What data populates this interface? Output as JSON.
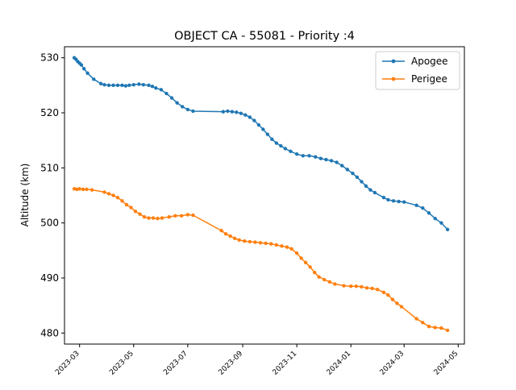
{
  "chart_data": {
    "type": "line",
    "title": "OBJECT CA - 55081 - Priority :4",
    "xlabel": "",
    "ylabel": "Altitude (km)",
    "xlim": [
      "2023-02-12",
      "2024-05-08"
    ],
    "ylim": [
      478,
      532
    ],
    "x_ticks": [
      "2023-03",
      "2023-05",
      "2023-07",
      "2023-09",
      "2023-11",
      "2024-01",
      "2024-03",
      "2024-05"
    ],
    "x_tick_dates": [
      "2023-03-01",
      "2023-05-01",
      "2023-07-01",
      "2023-09-01",
      "2023-11-01",
      "2024-01-01",
      "2024-03-01",
      "2024-05-01"
    ],
    "y_ticks": [
      480,
      490,
      500,
      510,
      520,
      530
    ],
    "grid": false,
    "legend": "top-right",
    "series": [
      {
        "name": "Apogee",
        "color": "#1f77b4",
        "points": [
          [
            "2023-02-23",
            530.0
          ],
          [
            "2023-02-25",
            529.7
          ],
          [
            "2023-02-27",
            529.3
          ],
          [
            "2023-03-01",
            529.0
          ],
          [
            "2023-03-03",
            528.7
          ],
          [
            "2023-03-06",
            528.0
          ],
          [
            "2023-03-10",
            527.2
          ],
          [
            "2023-03-17",
            526.1
          ],
          [
            "2023-03-25",
            525.3
          ],
          [
            "2023-03-29",
            525.1
          ],
          [
            "2023-04-03",
            525.0
          ],
          [
            "2023-04-08",
            525.0
          ],
          [
            "2023-04-13",
            525.0
          ],
          [
            "2023-04-18",
            525.0
          ],
          [
            "2023-04-22",
            524.9
          ],
          [
            "2023-04-26",
            525.0
          ],
          [
            "2023-05-01",
            525.1
          ],
          [
            "2023-05-07",
            525.2
          ],
          [
            "2023-05-12",
            525.1
          ],
          [
            "2023-05-18",
            525.0
          ],
          [
            "2023-05-22",
            524.8
          ],
          [
            "2023-05-26",
            524.5
          ],
          [
            "2023-06-01",
            524.2
          ],
          [
            "2023-06-07",
            523.5
          ],
          [
            "2023-06-13",
            522.7
          ],
          [
            "2023-06-19",
            521.8
          ],
          [
            "2023-06-25",
            521.1
          ],
          [
            "2023-07-01",
            520.6
          ],
          [
            "2023-07-07",
            520.3
          ],
          [
            "2023-08-10",
            520.2
          ],
          [
            "2023-08-15",
            520.3
          ],
          [
            "2023-08-20",
            520.2
          ],
          [
            "2023-08-25",
            520.1
          ],
          [
            "2023-08-30",
            519.9
          ],
          [
            "2023-09-04",
            519.6
          ],
          [
            "2023-09-09",
            519.2
          ],
          [
            "2023-09-14",
            518.6
          ],
          [
            "2023-09-19",
            517.8
          ],
          [
            "2023-09-24",
            517.0
          ],
          [
            "2023-09-29",
            516.1
          ],
          [
            "2023-10-04",
            515.2
          ],
          [
            "2023-10-09",
            514.5
          ],
          [
            "2023-10-14",
            514.0
          ],
          [
            "2023-10-19",
            513.5
          ],
          [
            "2023-10-25",
            513.0
          ],
          [
            "2023-11-01",
            512.5
          ],
          [
            "2023-11-08",
            512.2
          ],
          [
            "2023-11-15",
            512.2
          ],
          [
            "2023-11-22",
            512.0
          ],
          [
            "2023-11-28",
            511.7
          ],
          [
            "2023-12-04",
            511.5
          ],
          [
            "2023-12-10",
            511.3
          ],
          [
            "2023-12-16",
            511.0
          ],
          [
            "2023-12-22",
            510.4
          ],
          [
            "2023-12-28",
            509.7
          ],
          [
            "2024-01-03",
            509.0
          ],
          [
            "2024-01-08",
            508.3
          ],
          [
            "2024-01-13",
            507.5
          ],
          [
            "2024-01-18",
            506.7
          ],
          [
            "2024-01-23",
            506.0
          ],
          [
            "2024-01-28",
            505.5
          ],
          [
            "2024-02-07",
            504.6
          ],
          [
            "2024-02-12",
            504.2
          ],
          [
            "2024-02-18",
            504.0
          ],
          [
            "2024-02-24",
            503.9
          ],
          [
            "2024-03-01",
            503.8
          ],
          [
            "2024-03-15",
            503.2
          ],
          [
            "2024-03-22",
            502.7
          ],
          [
            "2024-03-29",
            501.8
          ],
          [
            "2024-04-05",
            500.8
          ],
          [
            "2024-04-12",
            500.0
          ],
          [
            "2024-04-19",
            498.8
          ]
        ]
      },
      {
        "name": "Perigee",
        "color": "#ff7f0e",
        "points": [
          [
            "2023-02-23",
            506.2
          ],
          [
            "2023-02-26",
            506.1
          ],
          [
            "2023-03-01",
            506.2
          ],
          [
            "2023-03-05",
            506.1
          ],
          [
            "2023-03-09",
            506.1
          ],
          [
            "2023-03-15",
            506.0
          ],
          [
            "2023-03-29",
            505.6
          ],
          [
            "2023-04-03",
            505.3
          ],
          [
            "2023-04-08",
            505.0
          ],
          [
            "2023-04-13",
            504.6
          ],
          [
            "2023-04-18",
            504.0
          ],
          [
            "2023-04-23",
            503.3
          ],
          [
            "2023-04-28",
            502.8
          ],
          [
            "2023-05-03",
            502.1
          ],
          [
            "2023-05-08",
            501.6
          ],
          [
            "2023-05-13",
            501.1
          ],
          [
            "2023-05-18",
            500.9
          ],
          [
            "2023-05-23",
            500.9
          ],
          [
            "2023-05-28",
            500.8
          ],
          [
            "2023-06-02",
            500.9
          ],
          [
            "2023-06-10",
            501.1
          ],
          [
            "2023-06-17",
            501.3
          ],
          [
            "2023-06-24",
            501.3
          ],
          [
            "2023-07-01",
            501.5
          ],
          [
            "2023-07-07",
            501.4
          ],
          [
            "2023-08-08",
            498.6
          ],
          [
            "2023-08-13",
            498.0
          ],
          [
            "2023-08-18",
            497.6
          ],
          [
            "2023-08-23",
            497.2
          ],
          [
            "2023-08-28",
            496.9
          ],
          [
            "2023-09-03",
            496.7
          ],
          [
            "2023-09-09",
            496.6
          ],
          [
            "2023-09-15",
            496.5
          ],
          [
            "2023-09-21",
            496.4
          ],
          [
            "2023-09-27",
            496.3
          ],
          [
            "2023-10-03",
            496.2
          ],
          [
            "2023-10-09",
            496.0
          ],
          [
            "2023-10-15",
            495.8
          ],
          [
            "2023-10-21",
            495.6
          ],
          [
            "2023-10-26",
            495.3
          ],
          [
            "2023-11-01",
            494.5
          ],
          [
            "2023-11-06",
            493.6
          ],
          [
            "2023-11-11",
            492.8
          ],
          [
            "2023-11-16",
            492.0
          ],
          [
            "2023-11-21",
            491.0
          ],
          [
            "2023-11-26",
            490.2
          ],
          [
            "2023-12-02",
            489.7
          ],
          [
            "2023-12-08",
            489.3
          ],
          [
            "2023-12-14",
            488.9
          ],
          [
            "2023-12-24",
            488.6
          ],
          [
            "2024-01-01",
            488.5
          ],
          [
            "2024-01-07",
            488.5
          ],
          [
            "2024-01-13",
            488.4
          ],
          [
            "2024-01-19",
            488.2
          ],
          [
            "2024-01-25",
            488.1
          ],
          [
            "2024-01-31",
            487.9
          ],
          [
            "2024-02-07",
            487.4
          ],
          [
            "2024-02-12",
            486.9
          ],
          [
            "2024-02-17",
            486.1
          ],
          [
            "2024-02-22",
            485.4
          ],
          [
            "2024-02-27",
            484.8
          ],
          [
            "2024-03-15",
            482.6
          ],
          [
            "2024-03-22",
            481.9
          ],
          [
            "2024-03-29",
            481.2
          ],
          [
            "2024-04-05",
            481.0
          ],
          [
            "2024-04-12",
            480.9
          ],
          [
            "2024-04-19",
            480.5
          ]
        ]
      }
    ]
  }
}
